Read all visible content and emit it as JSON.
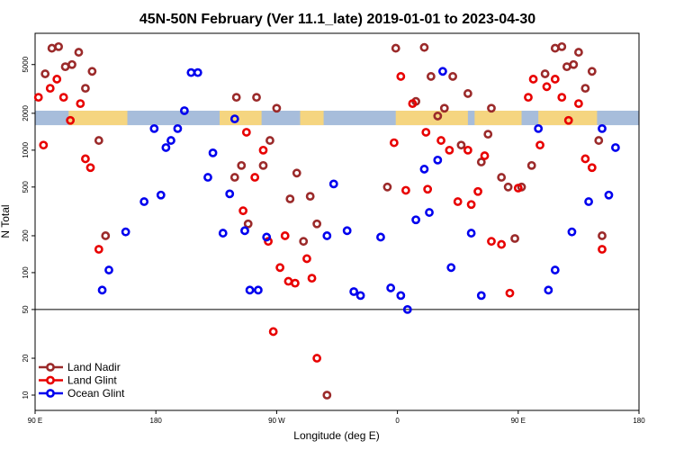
{
  "chart_data": {
    "type": "scatter",
    "title": "45N-50N February (Ver 11.1_late)   2019-01-01 to 2023-04-30",
    "xlabel": "Longitude (deg E)",
    "ylabel": "N Total",
    "x_range": [
      90,
      450
    ],
    "y_scale": "log",
    "y_range": [
      7.5,
      9000
    ],
    "x_ticks": [
      {
        "value": 90,
        "label": "90 E"
      },
      {
        "value": 162,
        "label": "180"
      },
      {
        "value": 234,
        "label": "90 W"
      },
      {
        "value": 306,
        "label": "0"
      },
      {
        "value": 378,
        "label": "90 E"
      },
      {
        "value": 450,
        "label": "180"
      }
    ],
    "y_ticks": [
      {
        "value": 10,
        "label": "10"
      },
      {
        "value": 20,
        "label": "20"
      },
      {
        "value": 50,
        "label": "50"
      },
      {
        "value": 100,
        "label": "100"
      },
      {
        "value": 200,
        "label": "200"
      },
      {
        "value": 500,
        "label": "500"
      },
      {
        "value": 1000,
        "label": "1000"
      },
      {
        "value": 2000,
        "label": "2000"
      },
      {
        "value": 5000,
        "label": "5000"
      }
    ],
    "reference_line": 50,
    "band": {
      "y_low": 1600,
      "y_high": 2100,
      "land_color": "#f5d580",
      "ocean_color": "#a7bddb"
    },
    "legend_position": "bottom-left",
    "series": [
      {
        "name": "Land Nadir",
        "color": "#9b2a2a",
        "points": [
          [
            96,
            4200
          ],
          [
            100,
            6800
          ],
          [
            104,
            7000
          ],
          [
            108,
            4800
          ],
          [
            112,
            5000
          ],
          [
            116,
            6300
          ],
          [
            120,
            3200
          ],
          [
            124,
            4400
          ],
          [
            128,
            1200
          ],
          [
            132,
            200
          ],
          [
            209,
            600
          ],
          [
            210,
            2700
          ],
          [
            213,
            750
          ],
          [
            217,
            250
          ],
          [
            222,
            2700
          ],
          [
            226,
            750
          ],
          [
            230,
            1200
          ],
          [
            234,
            2200
          ],
          [
            242,
            400
          ],
          [
            246,
            650
          ],
          [
            250,
            180
          ],
          [
            254,
            420
          ],
          [
            258,
            250
          ],
          [
            264,
            10
          ],
          [
            300,
            500
          ],
          [
            305,
            6800
          ],
          [
            317,
            2500
          ],
          [
            322,
            6900
          ],
          [
            326,
            4000
          ],
          [
            330,
            1900
          ],
          [
            334,
            2200
          ],
          [
            339,
            4000
          ],
          [
            344,
            1100
          ],
          [
            348,
            2900
          ],
          [
            356,
            800
          ],
          [
            360,
            1350
          ],
          [
            362,
            2200
          ],
          [
            368,
            600
          ],
          [
            372,
            500
          ],
          [
            376,
            190
          ],
          [
            380,
            500
          ],
          [
            386,
            750
          ],
          [
            394,
            4200
          ],
          [
            400,
            6800
          ],
          [
            404,
            7000
          ],
          [
            407,
            4800
          ],
          [
            411,
            5000
          ],
          [
            414,
            6300
          ],
          [
            418,
            3200
          ],
          [
            422,
            4400
          ],
          [
            426,
            1200
          ],
          [
            428,
            200
          ]
        ]
      },
      {
        "name": "Land Glint",
        "color": "#e80000",
        "points": [
          [
            92,
            2700
          ],
          [
            95,
            1100
          ],
          [
            99,
            3200
          ],
          [
            103,
            3800
          ],
          [
            107,
            2700
          ],
          [
            111,
            1750
          ],
          [
            117,
            2400
          ],
          [
            120,
            850
          ],
          [
            123,
            720
          ],
          [
            128,
            155
          ],
          [
            214,
            320
          ],
          [
            216,
            1400
          ],
          [
            221,
            600
          ],
          [
            226,
            1000
          ],
          [
            229,
            180
          ],
          [
            236,
            110
          ],
          [
            239,
            200
          ],
          [
            241,
            85
          ],
          [
            245,
            82
          ],
          [
            252,
            130
          ],
          [
            255,
            90
          ],
          [
            258,
            20
          ],
          [
            232,
            33
          ],
          [
            308,
            4000
          ],
          [
            311,
            470
          ],
          [
            315,
            2400
          ],
          [
            323,
            1400
          ],
          [
            324,
            480
          ],
          [
            332,
            1200
          ],
          [
            337,
            1000
          ],
          [
            342,
            380
          ],
          [
            348,
            1000
          ],
          [
            350,
            360
          ],
          [
            354,
            460
          ],
          [
            358,
            900
          ],
          [
            362,
            180
          ],
          [
            368,
            170
          ],
          [
            373,
            68
          ],
          [
            378,
            490
          ],
          [
            384,
            2700
          ],
          [
            387,
            3800
          ],
          [
            391,
            1100
          ],
          [
            395,
            3300
          ],
          [
            400,
            3800
          ],
          [
            404,
            2700
          ],
          [
            408,
            1750
          ],
          [
            414,
            2400
          ],
          [
            418,
            850
          ],
          [
            422,
            720
          ],
          [
            428,
            155
          ],
          [
            304,
            1150
          ]
        ]
      },
      {
        "name": "Ocean Glint",
        "color": "#0000ee",
        "points": [
          [
            130,
            72
          ],
          [
            134,
            105
          ],
          [
            144,
            215
          ],
          [
            155,
            380
          ],
          [
            161,
            1500
          ],
          [
            165,
            430
          ],
          [
            168,
            1050
          ],
          [
            171,
            1200
          ],
          [
            175,
            1500
          ],
          [
            179,
            2100
          ],
          [
            183,
            4300
          ],
          [
            187,
            4300
          ],
          [
            193,
            600
          ],
          [
            196,
            950
          ],
          [
            202,
            210
          ],
          [
            206,
            440
          ],
          [
            209,
            1800
          ],
          [
            215,
            220
          ],
          [
            218,
            72
          ],
          [
            223,
            72
          ],
          [
            228,
            195
          ],
          [
            264,
            200
          ],
          [
            268,
            530
          ],
          [
            276,
            220
          ],
          [
            280,
            70
          ],
          [
            284,
            65
          ],
          [
            296,
            195
          ],
          [
            302,
            75
          ],
          [
            308,
            65
          ],
          [
            312,
            50
          ],
          [
            317,
            270
          ],
          [
            322,
            700
          ],
          [
            325,
            310
          ],
          [
            330,
            830
          ],
          [
            333,
            4400
          ],
          [
            338,
            110
          ],
          [
            350,
            210
          ],
          [
            356,
            65
          ],
          [
            390,
            1500
          ],
          [
            396,
            72
          ],
          [
            400,
            105
          ],
          [
            410,
            215
          ],
          [
            420,
            380
          ],
          [
            428,
            1500
          ],
          [
            432,
            430
          ],
          [
            436,
            1050
          ]
        ]
      }
    ]
  }
}
